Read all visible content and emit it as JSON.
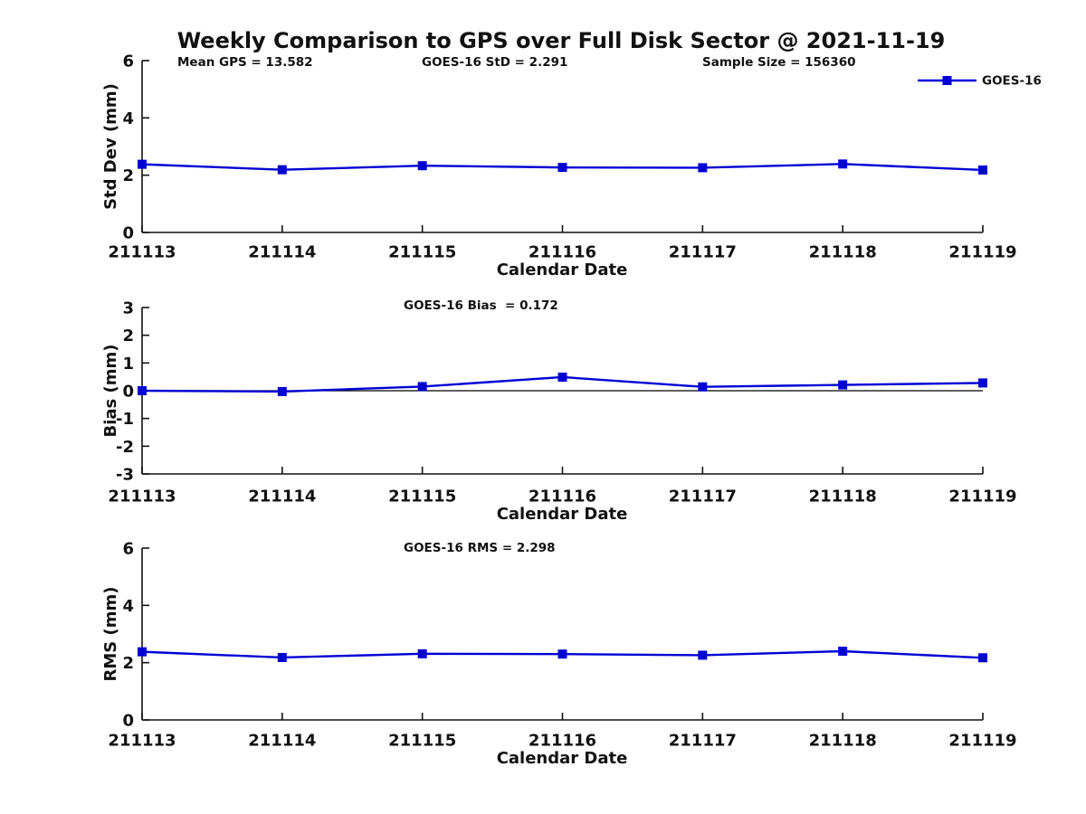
{
  "title": "Weekly Comparison to GPS over Full Disk Sector @ 2021-11-19",
  "legend": {
    "label": "GOES-16",
    "marker": "filled-square",
    "position": "upper-right"
  },
  "colors": {
    "series": "#0000d5",
    "text": "#111111",
    "axis": "#111111"
  },
  "chart_data": [
    {
      "type": "line",
      "name": "std-dev-vs-date",
      "xlabel": "Calendar Date",
      "ylabel": "Std Dev (mm)",
      "ylim": [
        0,
        6
      ],
      "yticks": [
        0,
        2,
        4,
        6
      ],
      "categories": [
        "211113",
        "211114",
        "211115",
        "211116",
        "211117",
        "211118",
        "211119"
      ],
      "series": [
        {
          "name": "GOES-16",
          "values": [
            2.38,
            2.19,
            2.33,
            2.27,
            2.26,
            2.39,
            2.18
          ]
        }
      ],
      "annotations": [
        "Mean GPS = 13.582",
        "GOES-16 StD = 2.291",
        "Sample Size = 156360"
      ],
      "grid": false,
      "zero_line": false,
      "legend_visible": true
    },
    {
      "type": "line",
      "name": "bias-vs-date",
      "xlabel": "Calendar Date",
      "ylabel": "Bias (mm)",
      "ylim": [
        -3,
        3
      ],
      "yticks": [
        -3,
        -2,
        -1,
        0,
        1,
        2,
        3
      ],
      "categories": [
        "211113",
        "211114",
        "211115",
        "211116",
        "211117",
        "211118",
        "211119"
      ],
      "series": [
        {
          "name": "GOES-16",
          "values": [
            0.0,
            -0.03,
            0.15,
            0.49,
            0.14,
            0.21,
            0.28
          ]
        }
      ],
      "annotations": [
        "GOES-16 Bias  = 0.172"
      ],
      "grid": false,
      "zero_line": true,
      "legend_visible": false
    },
    {
      "type": "line",
      "name": "rms-vs-date",
      "xlabel": "Calendar Date",
      "ylabel": "RMS (mm)",
      "ylim": [
        0,
        6
      ],
      "yticks": [
        0,
        2,
        4,
        6
      ],
      "categories": [
        "211113",
        "211114",
        "211115",
        "211116",
        "211117",
        "211118",
        "211119"
      ],
      "series": [
        {
          "name": "GOES-16",
          "values": [
            2.38,
            2.18,
            2.31,
            2.3,
            2.26,
            2.4,
            2.17
          ]
        }
      ],
      "annotations": [
        "GOES-16 RMS = 2.298"
      ],
      "grid": false,
      "zero_line": false,
      "legend_visible": false
    }
  ]
}
